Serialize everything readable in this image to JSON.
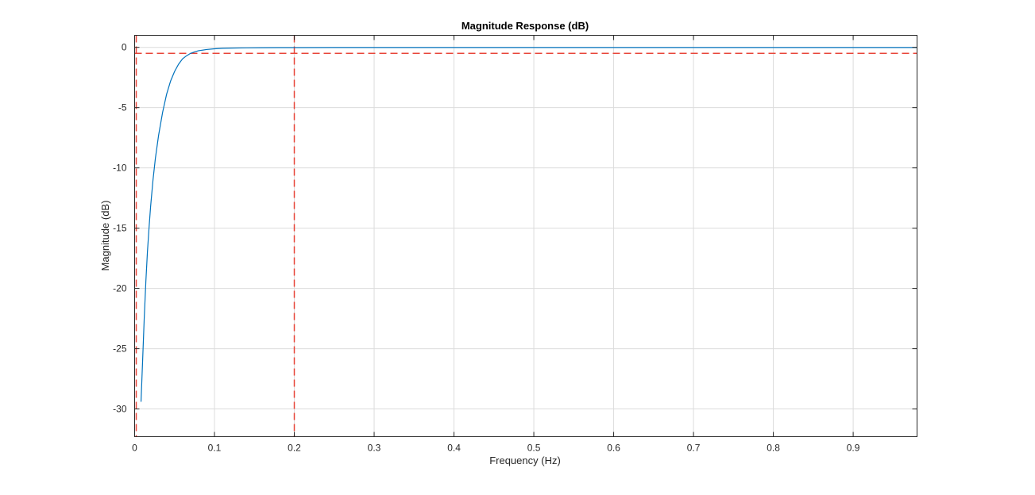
{
  "chart_data": {
    "type": "line",
    "title": "Magnitude Response (dB)",
    "xlabel": "Frequency (Hz)",
    "ylabel": "Magnitude (dB)",
    "xlim": [
      0,
      0.98
    ],
    "ylim": [
      -32.3,
      1.0
    ],
    "xticks": [
      0,
      0.1,
      0.2,
      0.3,
      0.4,
      0.5,
      0.6,
      0.7,
      0.8,
      0.9
    ],
    "xtick_labels": [
      "0",
      "0.1",
      "0.2",
      "0.3",
      "0.4",
      "0.5",
      "0.6",
      "0.7",
      "0.8",
      "0.9"
    ],
    "yticks": [
      0,
      -5,
      -10,
      -15,
      -20,
      -25,
      -30
    ],
    "ytick_labels": [
      "0",
      "-5",
      "-10",
      "-15",
      "-20",
      "-25",
      "-30"
    ],
    "grid": true,
    "series": [
      {
        "color": "#0072bd",
        "x": [
          0.008,
          0.01,
          0.012,
          0.014,
          0.016,
          0.018,
          0.02,
          0.023,
          0.026,
          0.03,
          0.035,
          0.04,
          0.045,
          0.05,
          0.055,
          0.06,
          0.065,
          0.07,
          0.075,
          0.08,
          0.09,
          0.1,
          0.11,
          0.12,
          0.14,
          0.16,
          0.18,
          0.2,
          0.25,
          0.3,
          0.4,
          0.5,
          0.6,
          0.7,
          0.8,
          0.9,
          0.98
        ],
        "y": [
          -29.4,
          -26.0,
          -22.5,
          -19.5,
          -17.0,
          -15.0,
          -13.2,
          -11.0,
          -9.2,
          -7.3,
          -5.4,
          -3.9,
          -2.8,
          -2.0,
          -1.4,
          -0.95,
          -0.7,
          -0.5,
          -0.38,
          -0.28,
          -0.18,
          -0.12,
          -0.08,
          -0.06,
          -0.04,
          -0.03,
          -0.02,
          -0.02,
          -0.01,
          -0.01,
          -0.01,
          -0.01,
          -0.01,
          -0.01,
          -0.01,
          -0.01,
          -0.01
        ]
      }
    ],
    "reference_lines": {
      "color": "#e8463a",
      "vertical_x": [
        0.002,
        0.2
      ],
      "horizontal_y": [
        -0.5
      ]
    }
  }
}
